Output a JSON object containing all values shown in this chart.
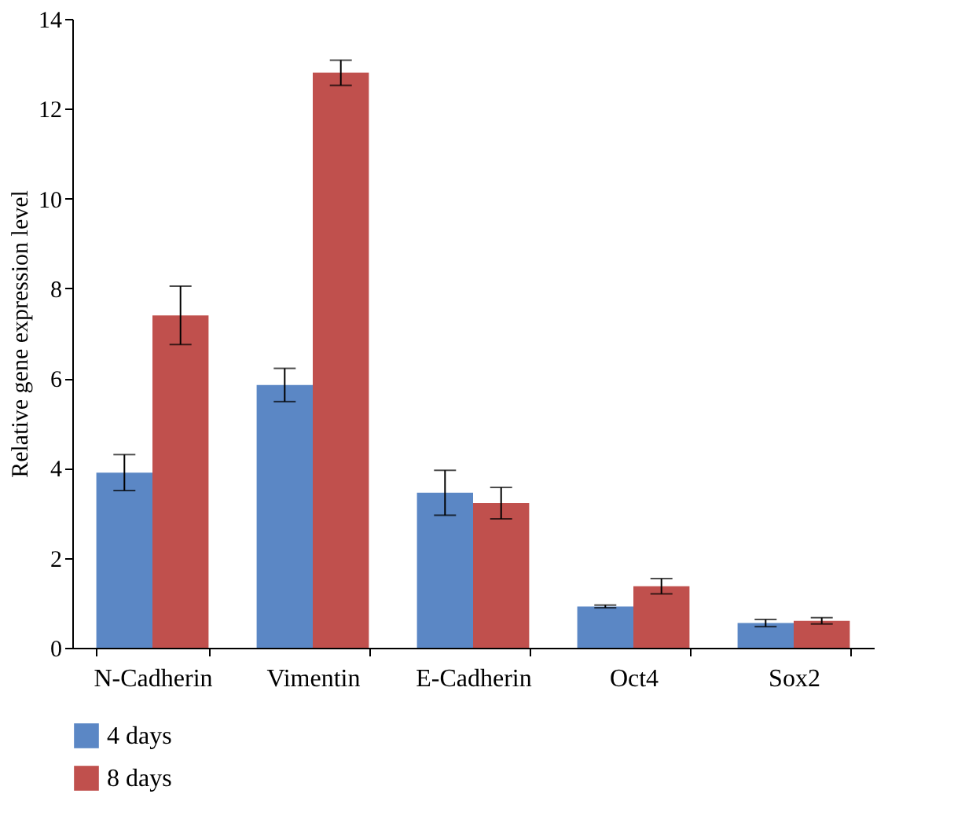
{
  "chart_data": {
    "type": "bar",
    "ylabel": "Relative gene expression level",
    "categories": [
      "N-Cadherin",
      "Vimentin",
      "E-Cadherin",
      "Oct4",
      "Sox2"
    ],
    "series": [
      {
        "name": "4 days",
        "color": "#5b87c5",
        "values": [
          3.9,
          5.85,
          3.45,
          0.92,
          0.55
        ],
        "errors": [
          0.4,
          0.37,
          0.5,
          0.03,
          0.08
        ]
      },
      {
        "name": "8 days",
        "color": "#c0504d",
        "values": [
          7.4,
          12.8,
          3.22,
          1.37,
          0.6
        ],
        "errors": [
          0.65,
          0.28,
          0.35,
          0.17,
          0.07
        ]
      }
    ],
    "ylim": [
      0,
      14
    ],
    "yticks": [
      0,
      2,
      4,
      6,
      8,
      10,
      12,
      14
    ],
    "grid": false,
    "legend": "bottom left"
  }
}
